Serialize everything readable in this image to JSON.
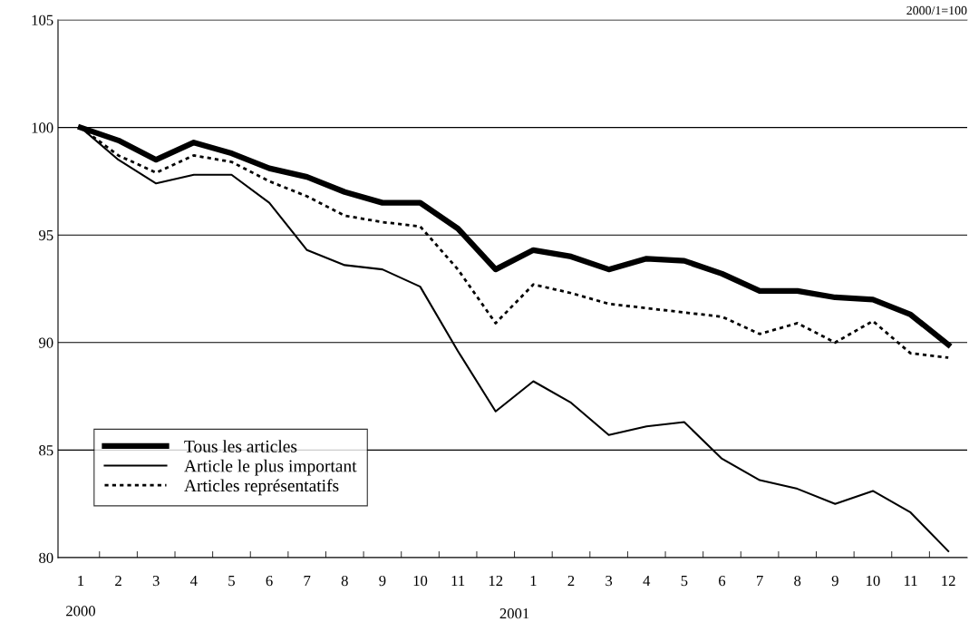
{
  "chart_data": {
    "type": "line",
    "categories": [
      "1",
      "2",
      "3",
      "4",
      "5",
      "6",
      "7",
      "8",
      "9",
      "10",
      "11",
      "12",
      "1",
      "2",
      "3",
      "4",
      "5",
      "6",
      "7",
      "8",
      "9",
      "10",
      "11",
      "12"
    ],
    "series": [
      {
        "name": "Tous les articles",
        "color": "#000000",
        "line_style": "solid",
        "values": [
          100,
          99.4,
          98.5,
          99.3,
          98.8,
          98.1,
          97.7,
          97.0,
          96.5,
          96.5,
          95.3,
          93.4,
          94.3,
          94.0,
          93.4,
          93.9,
          93.8,
          93.2,
          92.4,
          92.4,
          92.1,
          92.0,
          91.3,
          89.9
        ]
      },
      {
        "name": "Article le plus important",
        "color": "#000000",
        "line_style": "solid",
        "values": [
          100,
          98.5,
          97.4,
          97.8,
          97.8,
          96.5,
          94.3,
          93.6,
          93.4,
          92.6,
          89.6,
          86.8,
          88.2,
          87.2,
          85.7,
          86.1,
          86.3,
          84.6,
          83.6,
          83.2,
          82.5,
          83.1,
          82.1,
          80.3
        ]
      },
      {
        "name": "Articles représentatifs",
        "color": "#000000",
        "line_style": "dotted",
        "values": [
          100,
          98.7,
          97.9,
          98.7,
          98.4,
          97.5,
          96.8,
          95.9,
          95.6,
          95.4,
          93.4,
          90.9,
          92.7,
          92.3,
          91.8,
          91.6,
          91.4,
          91.2,
          90.4,
          90.9,
          90.0,
          91.0,
          89.5,
          89.3
        ]
      }
    ],
    "ylim": [
      80,
      105
    ],
    "yticks": [
      80,
      85,
      90,
      95,
      100,
      105
    ],
    "grid": "y",
    "legend": "bottom left",
    "marker": "none",
    "annotations": [
      "2000/1=100",
      "2000",
      "2001"
    ]
  }
}
